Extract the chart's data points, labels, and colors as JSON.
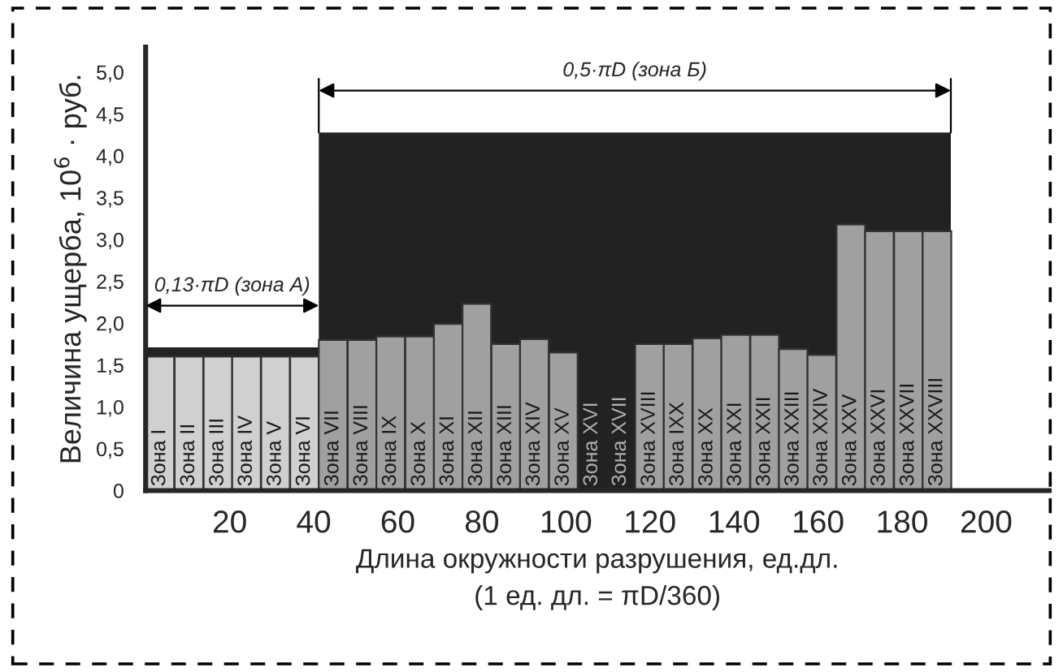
{
  "chart_data": {
    "type": "bar",
    "xlabel": "Длина окружности разрушения, ед.дл.\n(1 ед. дл. = πD/360)",
    "ylabel": "Величина ущерба, 10$^{6}$ · руб.",
    "x": [
      3.4,
      10.3,
      17.2,
      24.0,
      30.9,
      37.8,
      44.6,
      51.5,
      58.3,
      65.2,
      72.0,
      78.8,
      85.7,
      92.5,
      99.4,
      106.2,
      113.0,
      119.9,
      126.7,
      133.6,
      140.4,
      147.3,
      154.1,
      160.9,
      167.8,
      174.6,
      181.5,
      188.3
    ],
    "series": [
      {
        "type": "area",
        "color": "#222222",
        "x": [
          0,
          41.2,
          41.2,
          191.6
        ],
        "values": [
          1.71,
          1.71,
          4.28,
          4.28
        ]
      },
      {
        "colors": [
          "#d0d0d0",
          "#d0d0d0",
          "#d0d0d0",
          "#d0d0d0",
          "#d0d0d0",
          "#d0d0d0",
          "#a0a0a0",
          "#a0a0a0",
          "#a0a0a0",
          "#a0a0a0",
          "#a0a0a0",
          "#a0a0a0",
          "#a0a0a0",
          "#a0a0a0",
          "#a0a0a0",
          "#a0a0a0",
          "#a0a0a0",
          "#a0a0a0",
          "#a0a0a0",
          "#a0a0a0",
          "#a0a0a0",
          "#a0a0a0",
          "#a0a0a0",
          "#a0a0a0",
          "#a0a0a0",
          "#a0a0a0",
          "#a0a0a0",
          "#a0a0a0"
        ],
        "values": [
          1.6,
          1.6,
          1.6,
          1.6,
          1.6,
          1.6,
          1.8,
          1.8,
          1.84,
          1.84,
          1.99,
          2.23,
          1.75,
          1.81,
          1.65,
          null,
          null,
          1.75,
          1.75,
          1.82,
          1.86,
          1.86,
          1.69,
          1.62,
          3.18,
          3.1,
          3.1,
          3.1
        ]
      },
      {
        "type": "line",
        "color": "#000000",
        "x": [
          41.2,
          41.2
        ],
        "values": [
          4.28,
          4.92
        ]
      },
      {
        "type": "line",
        "color": "#000000",
        "x": [
          191.6,
          191.6
        ],
        "values": [
          4.28,
          4.92
        ]
      }
    ],
    "annotations": [
      "0,13·πD (зона А)",
      "0,5·πD (зона Б)",
      {
        "text": "Зона I",
        "x": 3.4,
        "y": 0
      },
      {
        "text": "Зона II",
        "x": 10.3,
        "y": 0
      },
      {
        "text": "Зона III",
        "x": 17.2,
        "y": 0
      },
      {
        "text": "Зона IV",
        "x": 24.0,
        "y": 0
      },
      {
        "text": "Зона V",
        "x": 30.9,
        "y": 0
      },
      {
        "text": "Зона VI",
        "x": 37.8,
        "y": 0
      },
      {
        "text": "Зона VII",
        "x": 44.6,
        "y": 0
      },
      {
        "text": "Зона VIII",
        "x": 51.5,
        "y": 0
      },
      {
        "text": "Зона IX",
        "x": 58.3,
        "y": 0
      },
      {
        "text": "Зона X",
        "x": 65.2,
        "y": 0
      },
      {
        "text": "Зона XI",
        "x": 72.0,
        "y": 0
      },
      {
        "text": "Зона XII",
        "x": 78.8,
        "y": 0
      },
      {
        "text": "Зона XIII",
        "x": 85.7,
        "y": 0
      },
      {
        "text": "Зона XIV",
        "x": 92.5,
        "y": 0
      },
      {
        "text": "Зона XV",
        "x": 99.4,
        "y": 0
      },
      {
        "text": "Зона XVI",
        "x": 106.2,
        "y": 0
      },
      {
        "text": "Зона XVII",
        "x": 113.0,
        "y": 0
      },
      {
        "text": "Зона XVIII",
        "x": 119.9,
        "y": 0
      },
      {
        "text": "Зона IXX",
        "x": 126.7,
        "y": 0
      },
      {
        "text": "Зона XX",
        "x": 133.6,
        "y": 0
      },
      {
        "text": "Зона XXI",
        "x": 140.4,
        "y": 0
      },
      {
        "text": "Зона XXII",
        "x": 147.3,
        "y": 0
      },
      {
        "text": "Зона XXIII",
        "x": 154.1,
        "y": 0
      },
      {
        "text": "Зона XXIV",
        "x": 160.9,
        "y": 0
      },
      {
        "text": "Зона XXV",
        "x": 167.8,
        "y": 0
      },
      {
        "text": "Зона XXVI",
        "x": 174.6,
        "y": 0
      },
      {
        "text": "Зона XXVII",
        "x": 181.5,
        "y": 0
      },
      {
        "text": "Зона XXVIII",
        "x": 188.3,
        "y": 0
      }
    ],
    "xlim": [
      0,
      215
    ],
    "xticks": [
      20,
      40,
      60,
      80,
      100,
      120,
      140,
      160,
      180,
      200
    ],
    "ylim": [
      0,
      5.3
    ],
    "yticks": [
      0,
      {
        "value": 0.5,
        "label": "0,5"
      },
      {
        "value": 1.0,
        "label": "1,0"
      },
      {
        "value": 1.5,
        "label": "1,5"
      },
      {
        "value": 2.0,
        "label": "2,0"
      },
      {
        "value": 2.5,
        "label": "2,5"
      },
      {
        "value": 3.0,
        "label": "3,0"
      },
      {
        "value": 3.5,
        "label": "3,5"
      },
      {
        "value": 4.0,
        "label": "4,0"
      },
      {
        "value": 4.5,
        "label": "4,5"
      },
      {
        "value": 5.0,
        "label": "5,0"
      }
    ],
    "grid": false,
    "legend": false
  }
}
